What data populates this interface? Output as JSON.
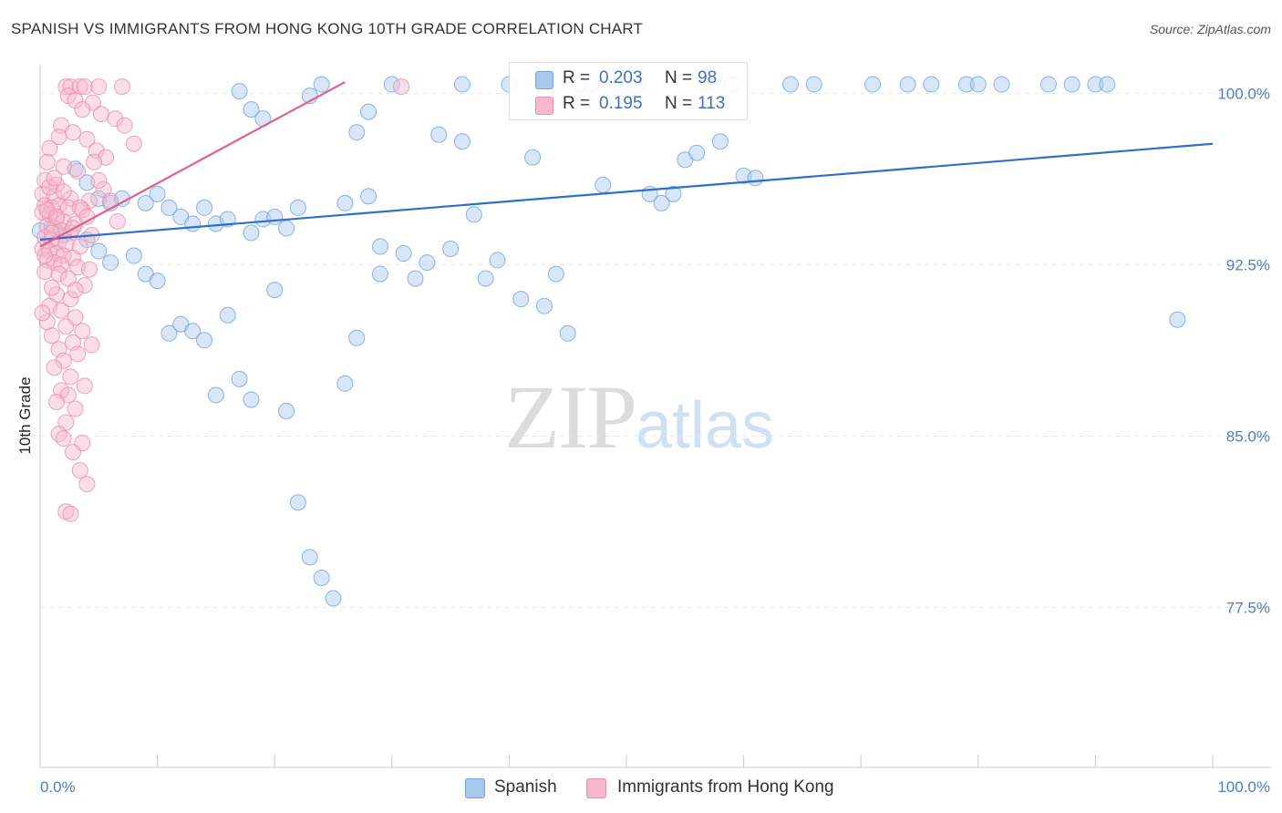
{
  "title": "SPANISH VS IMMIGRANTS FROM HONG KONG 10TH GRADE CORRELATION CHART",
  "source": "Source: ZipAtlas.com",
  "watermark": {
    "zip": "ZIP",
    "atlas": "atlas"
  },
  "legend": {
    "rows": [
      {
        "r_label": "R =",
        "r_value": "0.203",
        "n_label": "N =",
        "n_value": "98",
        "color": "#a9c8ee"
      },
      {
        "r_label": "R =",
        "r_value": "0.195",
        "n_label": "N =",
        "n_value": "113",
        "color": "#f6b8cb"
      }
    ]
  },
  "bottom_legend": [
    {
      "label": "Spanish",
      "color": "#a9c8ee"
    },
    {
      "label": "Immigrants from Hong Kong",
      "color": "#f6b8cb"
    }
  ],
  "chart_data": {
    "type": "scatter",
    "title": "SPANISH VS IMMIGRANTS FROM HONG KONG 10TH GRADE CORRELATION CHART",
    "xlabel": "",
    "ylabel": "10th Grade",
    "xlim": [
      0,
      100
    ],
    "ylim": [
      70.5,
      101.3
    ],
    "x_tick_labels": [
      "0.0%",
      "100.0%"
    ],
    "y_ticks": [
      {
        "value": 100.0,
        "label": "100.0%"
      },
      {
        "value": 92.5,
        "label": "92.5%"
      },
      {
        "value": 85.0,
        "label": "85.0%"
      },
      {
        "value": 77.5,
        "label": "77.5%"
      }
    ],
    "grid": true,
    "series": [
      {
        "name": "Spanish",
        "color": "#6fa3e0",
        "fill": "#a9c8ee",
        "trend": {
          "x": [
            0,
            100
          ],
          "y": [
            93.6,
            97.8
          ],
          "color": "#2f6fc8"
        },
        "points": [
          [
            24,
            100.4
          ],
          [
            30,
            100.4
          ],
          [
            36,
            100.4
          ],
          [
            40,
            100.4
          ],
          [
            46,
            100.4
          ],
          [
            47,
            100.4
          ],
          [
            49,
            100.4
          ],
          [
            51,
            100.4
          ],
          [
            57,
            100.4
          ],
          [
            59,
            100.4
          ],
          [
            64,
            100.4
          ],
          [
            66,
            100.4
          ],
          [
            71,
            100.4
          ],
          [
            74,
            100.4
          ],
          [
            76,
            100.4
          ],
          [
            79,
            100.4
          ],
          [
            80,
            100.4
          ],
          [
            82,
            100.4
          ],
          [
            86,
            100.4
          ],
          [
            88,
            100.4
          ],
          [
            90,
            100.4
          ],
          [
            91,
            100.4
          ],
          [
            17,
            100.1
          ],
          [
            23,
            99.9
          ],
          [
            18,
            99.3
          ],
          [
            28,
            99.2
          ],
          [
            19,
            98.9
          ],
          [
            27,
            98.3
          ],
          [
            34,
            98.2
          ],
          [
            36,
            97.9
          ],
          [
            42,
            97.2
          ],
          [
            55,
            97.1
          ],
          [
            60,
            96.4
          ],
          [
            3,
            96.7
          ],
          [
            4,
            96.1
          ],
          [
            5,
            95.4
          ],
          [
            6,
            95.2
          ],
          [
            7,
            95.4
          ],
          [
            9,
            95.2
          ],
          [
            10,
            95.6
          ],
          [
            11,
            95.0
          ],
          [
            12,
            94.6
          ],
          [
            13,
            94.3
          ],
          [
            14,
            95.0
          ],
          [
            15,
            94.3
          ],
          [
            16,
            94.5
          ],
          [
            18,
            93.9
          ],
          [
            19,
            94.5
          ],
          [
            20,
            94.6
          ],
          [
            21,
            94.1
          ],
          [
            22,
            95.0
          ],
          [
            26,
            95.2
          ],
          [
            28,
            95.5
          ],
          [
            29,
            93.3
          ],
          [
            33,
            92.6
          ],
          [
            35,
            93.2
          ],
          [
            37,
            94.7
          ],
          [
            38,
            91.9
          ],
          [
            39,
            92.7
          ],
          [
            41,
            91.0
          ],
          [
            43,
            90.7
          ],
          [
            45,
            89.5
          ],
          [
            52,
            95.6
          ],
          [
            53,
            95.2
          ],
          [
            0,
            94.0
          ],
          [
            1,
            94.2
          ],
          [
            2,
            93.8
          ],
          [
            4,
            93.6
          ],
          [
            5,
            93.1
          ],
          [
            6,
            92.6
          ],
          [
            8,
            92.9
          ],
          [
            9,
            92.1
          ],
          [
            10,
            91.8
          ],
          [
            11,
            89.5
          ],
          [
            12,
            89.9
          ],
          [
            13,
            89.6
          ],
          [
            14,
            89.2
          ],
          [
            15,
            86.8
          ],
          [
            16,
            90.3
          ],
          [
            17,
            87.5
          ],
          [
            18,
            86.6
          ],
          [
            20,
            91.4
          ],
          [
            21,
            86.1
          ],
          [
            22,
            82.1
          ],
          [
            23,
            79.7
          ],
          [
            24,
            78.8
          ],
          [
            25,
            77.9
          ],
          [
            26,
            87.3
          ],
          [
            27,
            89.3
          ],
          [
            29,
            92.1
          ],
          [
            31,
            93.0
          ],
          [
            32,
            91.9
          ],
          [
            44,
            92.1
          ],
          [
            48,
            96.0
          ],
          [
            54,
            95.6
          ],
          [
            56,
            97.4
          ],
          [
            58,
            97.9
          ],
          [
            61,
            96.3
          ],
          [
            97,
            90.1
          ]
        ]
      },
      {
        "name": "Immigrants from Hong Kong",
        "color": "#ec8bab",
        "fill": "#f6b8cb",
        "trend": {
          "x": [
            0,
            26
          ],
          "y": [
            93.3,
            100.5
          ],
          "color": "#e0608f"
        },
        "points": [
          [
            2.2,
            100.3
          ],
          [
            2.6,
            100.3
          ],
          [
            3.4,
            100.3
          ],
          [
            3.8,
            100.3
          ],
          [
            5.0,
            100.3
          ],
          [
            7.0,
            100.3
          ],
          [
            30.8,
            100.3
          ],
          [
            2.4,
            99.9
          ],
          [
            3.0,
            99.7
          ],
          [
            4.5,
            99.6
          ],
          [
            3.6,
            99.3
          ],
          [
            5.2,
            99.1
          ],
          [
            6.4,
            98.9
          ],
          [
            1.8,
            98.6
          ],
          [
            2.8,
            98.3
          ],
          [
            1.6,
            98.1
          ],
          [
            4.0,
            98.0
          ],
          [
            0.8,
            97.6
          ],
          [
            4.8,
            97.5
          ],
          [
            5.6,
            97.2
          ],
          [
            0.6,
            97.0
          ],
          [
            2.0,
            96.8
          ],
          [
            3.2,
            96.6
          ],
          [
            0.4,
            96.2
          ],
          [
            1.4,
            96.0
          ],
          [
            5.4,
            95.8
          ],
          [
            0.2,
            95.6
          ],
          [
            1.2,
            95.5
          ],
          [
            2.6,
            95.4
          ],
          [
            4.2,
            95.3
          ],
          [
            0.4,
            95.1
          ],
          [
            1.0,
            95.0
          ],
          [
            1.6,
            95.1
          ],
          [
            2.4,
            95.0
          ],
          [
            3.6,
            94.9
          ],
          [
            0.2,
            94.8
          ],
          [
            0.8,
            94.7
          ],
          [
            1.4,
            94.5
          ],
          [
            2.0,
            94.4
          ],
          [
            3.0,
            94.3
          ],
          [
            0.6,
            94.2
          ],
          [
            1.2,
            94.1
          ],
          [
            1.8,
            94.0
          ],
          [
            2.6,
            93.9
          ],
          [
            4.4,
            93.8
          ],
          [
            0.4,
            93.7
          ],
          [
            1.0,
            93.6
          ],
          [
            1.6,
            93.5
          ],
          [
            2.2,
            93.4
          ],
          [
            3.4,
            93.3
          ],
          [
            0.2,
            93.2
          ],
          [
            0.8,
            93.1
          ],
          [
            1.4,
            93.0
          ],
          [
            2.0,
            92.9
          ],
          [
            2.8,
            92.8
          ],
          [
            0.6,
            92.7
          ],
          [
            1.2,
            92.6
          ],
          [
            1.8,
            92.5
          ],
          [
            3.2,
            92.4
          ],
          [
            4.2,
            92.3
          ],
          [
            0.4,
            92.2
          ],
          [
            1.6,
            92.1
          ],
          [
            2.4,
            91.9
          ],
          [
            3.8,
            91.6
          ],
          [
            1.4,
            91.2
          ],
          [
            2.6,
            91.0
          ],
          [
            0.8,
            90.7
          ],
          [
            1.8,
            90.5
          ],
          [
            3.0,
            90.2
          ],
          [
            0.6,
            90.0
          ],
          [
            2.2,
            89.8
          ],
          [
            3.6,
            89.6
          ],
          [
            1.0,
            89.4
          ],
          [
            2.8,
            89.1
          ],
          [
            4.4,
            89.0
          ],
          [
            1.6,
            88.8
          ],
          [
            3.2,
            88.6
          ],
          [
            2.0,
            88.3
          ],
          [
            1.2,
            88.0
          ],
          [
            2.6,
            87.6
          ],
          [
            3.8,
            87.2
          ],
          [
            1.8,
            87.0
          ],
          [
            2.4,
            86.8
          ],
          [
            1.4,
            86.5
          ],
          [
            3.0,
            86.2
          ],
          [
            2.2,
            85.6
          ],
          [
            1.6,
            85.1
          ],
          [
            2.0,
            84.9
          ],
          [
            3.6,
            84.7
          ],
          [
            2.8,
            84.3
          ],
          [
            3.4,
            83.5
          ],
          [
            4.0,
            82.9
          ],
          [
            2.2,
            81.7
          ],
          [
            2.6,
            81.6
          ],
          [
            0.8,
            95.9
          ],
          [
            1.2,
            96.3
          ],
          [
            0.6,
            94.9
          ],
          [
            1.0,
            93.9
          ],
          [
            0.4,
            92.9
          ],
          [
            1.4,
            94.6
          ],
          [
            2.0,
            95.7
          ],
          [
            2.8,
            94.1
          ],
          [
            3.4,
            95.0
          ],
          [
            4.0,
            94.6
          ],
          [
            4.6,
            97.0
          ],
          [
            5.0,
            96.2
          ],
          [
            6.0,
            95.3
          ],
          [
            6.6,
            94.4
          ],
          [
            7.2,
            98.6
          ],
          [
            8.0,
            97.8
          ],
          [
            1.0,
            91.5
          ],
          [
            0.2,
            90.4
          ],
          [
            3.0,
            91.4
          ]
        ]
      }
    ]
  }
}
